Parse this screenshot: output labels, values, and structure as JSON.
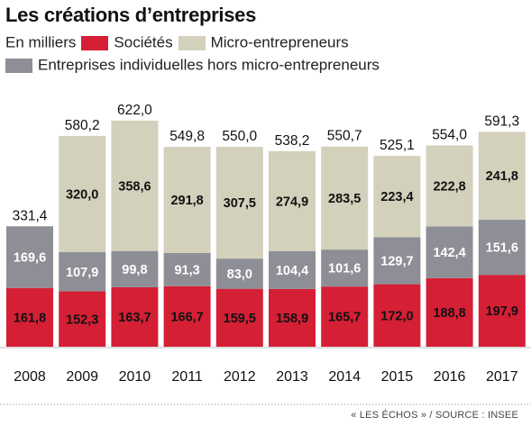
{
  "title": "Les créations d’entreprises",
  "legend": {
    "unit": "En milliers",
    "items": [
      {
        "label": "Sociétés",
        "color": "#d51f35"
      },
      {
        "label": "Micro-entrepreneurs",
        "color": "#d3d0bb"
      },
      {
        "label": "Entreprises individuelles hors micro-entrepreneurs",
        "color": "#8e8f96"
      }
    ]
  },
  "source": "« LES ÉCHOS » / SOURCE : INSEE",
  "chart_data": {
    "type": "bar",
    "stacked": true,
    "categories": [
      "2008",
      "2009",
      "2010",
      "2011",
      "2012",
      "2013",
      "2014",
      "2015",
      "2016",
      "2017"
    ],
    "series": [
      {
        "name": "Sociétés",
        "color": "#d51f35",
        "labels": [
          "161,8",
          "152,3",
          "163,7",
          "166,7",
          "159,5",
          "158,9",
          "165,7",
          "172,0",
          "188,8",
          "197,9"
        ],
        "values": [
          161.8,
          152.3,
          163.7,
          166.7,
          159.5,
          158.9,
          165.7,
          172.0,
          188.8,
          197.9
        ]
      },
      {
        "name": "Entreprises individuelles hors micro-entrepreneurs",
        "color": "#8e8f96",
        "labels": [
          "169,6",
          "107,9",
          "99,8",
          "91,3",
          "83,0",
          "104,4",
          "101,6",
          "129,7",
          "142,4",
          "151,6"
        ],
        "values": [
          169.6,
          107.9,
          99.8,
          91.3,
          83.0,
          104.4,
          101.6,
          129.7,
          142.4,
          151.6
        ]
      },
      {
        "name": "Micro-entrepreneurs",
        "color": "#d3d0bb",
        "labels": [
          "",
          "320,0",
          "358,6",
          "291,8",
          "307,5",
          "274,9",
          "283,5",
          "223,4",
          "222,8",
          "241,8"
        ],
        "values": [
          0,
          320.0,
          358.6,
          291.8,
          307.5,
          274.9,
          283.5,
          223.4,
          222.8,
          241.8
        ]
      }
    ],
    "totals": [
      "331,4",
      "580,2",
      "622,0",
      "549,8",
      "550,0",
      "538,2",
      "550,7",
      "525,1",
      "554,0",
      "591,3"
    ],
    "ylim": [
      0,
      622
    ],
    "grid": false
  }
}
